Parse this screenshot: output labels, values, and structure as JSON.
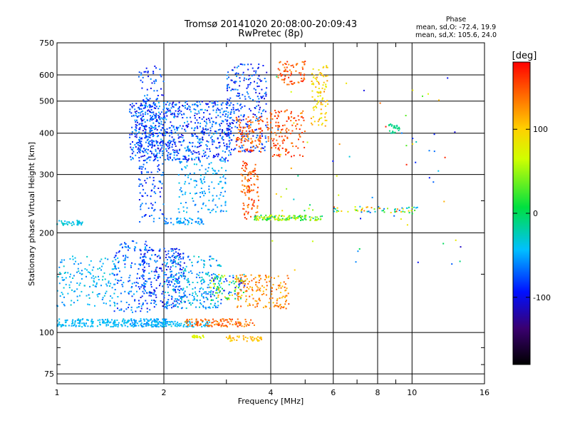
{
  "title": {
    "line1": "Tromsø 20141020 20:08:00-20:09:43",
    "line2": "RwPretec (8p)"
  },
  "phase_info": {
    "heading": "Phase",
    "line_o": "mean, sd,O: -72.4, 19.9",
    "line_x": "mean, sd,X: 105.6, 24.0"
  },
  "colorbar": {
    "label": "[deg]",
    "range": [
      -180,
      180
    ],
    "ticks": [
      {
        "value": 100,
        "label": "100"
      },
      {
        "value": 0,
        "label": "0"
      },
      {
        "value": -100,
        "label": "-100"
      }
    ]
  },
  "chart_data": {
    "type": "scatter",
    "xlabel": "Frequency [MHz]",
    "ylabel": "Stationary phase Virtual Height [km]",
    "xscale": "log",
    "yscale": "log",
    "xlim": [
      1,
      16
    ],
    "ylim": [
      70,
      750
    ],
    "grid": true,
    "xticks": [
      {
        "value": 1,
        "label": "1"
      },
      {
        "value": 2,
        "label": "2"
      },
      {
        "value": 4,
        "label": "4"
      },
      {
        "value": 6,
        "label": "6"
      },
      {
        "value": 8,
        "label": "8"
      },
      {
        "value": 10,
        "label": "10"
      },
      {
        "value": 16,
        "label": "16"
      }
    ],
    "xminor": [
      3,
      5,
      7,
      9
    ],
    "yticks": [
      {
        "value": 75,
        "label": "75"
      },
      {
        "value": 100,
        "label": "100"
      },
      {
        "value": 200,
        "label": "200"
      },
      {
        "value": 300,
        "label": "300"
      },
      {
        "value": 400,
        "label": "400"
      },
      {
        "value": 500,
        "label": "500"
      },
      {
        "value": 600,
        "label": "600"
      },
      {
        "value": 750,
        "label": "750"
      }
    ],
    "point_clusters": [
      {
        "f": [
          1.0,
          1.18
        ],
        "h": [
          210,
          218
        ],
        "phase": [
          -55,
          -30
        ],
        "n": 40
      },
      {
        "f": [
          1.0,
          1.6
        ],
        "h": [
          104,
          110
        ],
        "phase": [
          -60,
          -40
        ],
        "n": 150
      },
      {
        "f": [
          1.0,
          1.5
        ],
        "h": [
          120,
          170
        ],
        "phase": [
          -70,
          -35
        ],
        "n": 160
      },
      {
        "f": [
          1.45,
          1.85
        ],
        "h": [
          115,
          190
        ],
        "phase": [
          -100,
          -50
        ],
        "n": 150
      },
      {
        "f": [
          1.6,
          2.05
        ],
        "h": [
          104,
          110
        ],
        "phase": [
          -70,
          -45
        ],
        "n": 120
      },
      {
        "f": [
          1.7,
          2.3
        ],
        "h": [
          118,
          180
        ],
        "phase": [
          -120,
          -60
        ],
        "n": 260
      },
      {
        "f": [
          1.8,
          2.7
        ],
        "h": [
          104,
          108
        ],
        "phase": [
          -55,
          -40
        ],
        "n": 80
      },
      {
        "f": [
          2.3,
          3.6
        ],
        "h": [
          104,
          110
        ],
        "phase": [
          120,
          160
        ],
        "n": 110
      },
      {
        "f": [
          2.4,
          2.6
        ],
        "h": [
          96,
          98
        ],
        "phase": [
          60,
          75
        ],
        "n": 25
      },
      {
        "f": [
          3.0,
          3.8
        ],
        "h": [
          94,
          98
        ],
        "phase": [
          90,
          120
        ],
        "n": 45
      },
      {
        "f": [
          2.0,
          2.9
        ],
        "h": [
          118,
          170
        ],
        "phase": [
          -80,
          -30
        ],
        "n": 230
      },
      {
        "f": [
          2.7,
          3.4
        ],
        "h": [
          125,
          150
        ],
        "phase": [
          -130,
          130
        ],
        "n": 110
      },
      {
        "f": [
          3.2,
          4.5
        ],
        "h": [
          118,
          150
        ],
        "phase": [
          100,
          150
        ],
        "n": 160
      },
      {
        "f": [
          1.7,
          2.0
        ],
        "h": [
          215,
          640
        ],
        "phase": [
          -110,
          -60
        ],
        "n": 240
      },
      {
        "f": [
          1.6,
          3.1
        ],
        "h": [
          330,
          500
        ],
        "phase": [
          -120,
          -50
        ],
        "n": 750
      },
      {
        "f": [
          2.2,
          3.0
        ],
        "h": [
          230,
          330
        ],
        "phase": [
          -75,
          -40
        ],
        "n": 140
      },
      {
        "f": [
          2.0,
          2.6
        ],
        "h": [
          212,
          222
        ],
        "phase": [
          -75,
          -45
        ],
        "n": 60
      },
      {
        "f": [
          3.0,
          3.9
        ],
        "h": [
          350,
          650
        ],
        "phase": [
          -120,
          -60
        ],
        "n": 260
      },
      {
        "f": [
          3.2,
          3.8
        ],
        "h": [
          350,
          450
        ],
        "phase": [
          120,
          170
        ],
        "n": 110
      },
      {
        "f": [
          3.3,
          3.7
        ],
        "h": [
          220,
          330
        ],
        "phase": [
          120,
          170
        ],
        "n": 110
      },
      {
        "f": [
          3.6,
          5.6
        ],
        "h": [
          218,
          226
        ],
        "phase": [
          -30,
          90
        ],
        "n": 140
      },
      {
        "f": [
          3.9,
          5.0
        ],
        "h": [
          340,
          470
        ],
        "phase": [
          130,
          170
        ],
        "n": 130
      },
      {
        "f": [
          4.2,
          5.0
        ],
        "h": [
          560,
          660
        ],
        "phase": [
          120,
          170
        ],
        "n": 70
      },
      {
        "f": [
          5.2,
          5.8
        ],
        "h": [
          420,
          650
        ],
        "phase": [
          70,
          130
        ],
        "n": 90
      },
      {
        "f": [
          6.0,
          10.5
        ],
        "h": [
          230,
          240
        ],
        "phase": [
          -80,
          160
        ],
        "n": 60
      },
      {
        "f": [
          8.5,
          9.3
        ],
        "h": [
          400,
          430
        ],
        "phase": [
          -30,
          -10
        ],
        "n": 25
      },
      {
        "f": [
          4.0,
          14.0
        ],
        "h": [
          150,
          620
        ],
        "phase": [
          -120,
          170
        ],
        "n": 70
      }
    ]
  }
}
